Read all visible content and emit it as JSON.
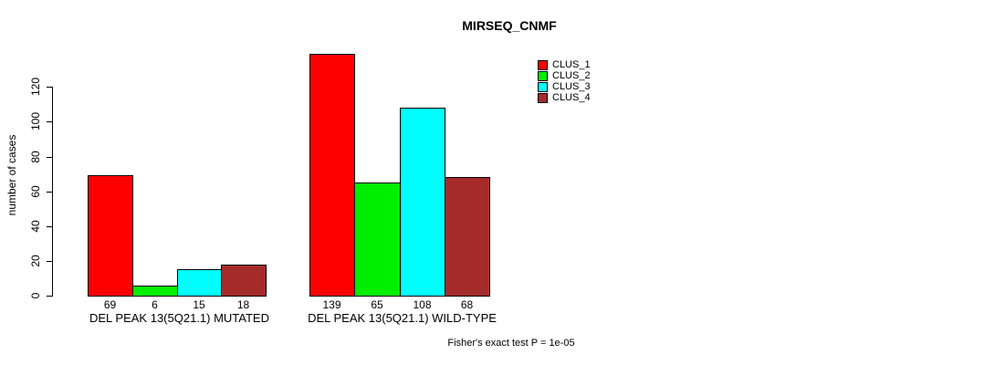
{
  "chart_data": {
    "type": "bar",
    "title": "MIRSEQ_CNMF",
    "ylabel": "number of cases",
    "xlabel": "",
    "yticks": [
      0,
      20,
      40,
      60,
      80,
      100,
      120
    ],
    "ylim": [
      0,
      140
    ],
    "grid": false,
    "legend_position": "top-right-outside",
    "categories": [
      "DEL PEAK 13(5Q21.1) MUTATED",
      "DEL PEAK 13(5Q21.1) WILD-TYPE"
    ],
    "series": [
      {
        "name": "CLUS_1",
        "color": "#ff0000",
        "values": [
          69,
          139
        ]
      },
      {
        "name": "CLUS_2",
        "color": "#00ee00",
        "values": [
          6,
          65
        ]
      },
      {
        "name": "CLUS_3",
        "color": "#00ffff",
        "values": [
          15,
          108
        ]
      },
      {
        "name": "CLUS_4",
        "color": "#a52a2a",
        "values": [
          18,
          68
        ]
      }
    ],
    "annotation": "Fisher's exact test P = 1e-05"
  }
}
